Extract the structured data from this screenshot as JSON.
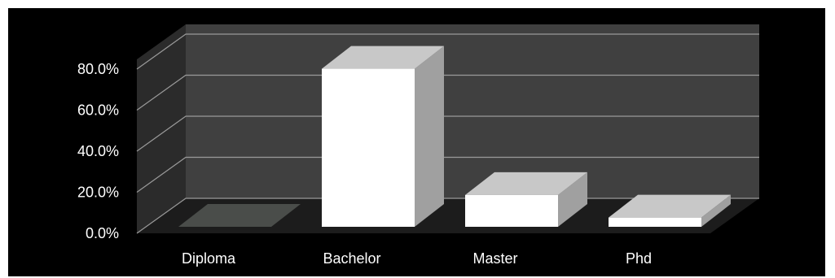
{
  "chart_data": {
    "type": "bar",
    "categories": [
      "Diploma",
      "Bachelor",
      "Master",
      "Phd"
    ],
    "values": [
      0.0,
      77.0,
      15.5,
      4.5
    ],
    "y_tick_labels": [
      "0.0%",
      "20.0%",
      "40.0%",
      "60.0%",
      "80.0%"
    ],
    "y_ticks": [
      0,
      20,
      40,
      60,
      80
    ],
    "ylim": [
      0,
      80
    ],
    "title": "",
    "xlabel": "",
    "ylabel": "",
    "grid": true,
    "legend": "none",
    "style": "3d-column",
    "colors": {
      "background": "#000000",
      "back_wall": "#404040",
      "side_wall": "#2b2b2b",
      "floor": "#1c1c1c",
      "gridline": "#9a9a9a",
      "bar_front": "#ffffff",
      "bar_top": "#c8c8c8",
      "bar_side": "#a0a0a0",
      "zero_bar": "#4a4d4a"
    }
  }
}
